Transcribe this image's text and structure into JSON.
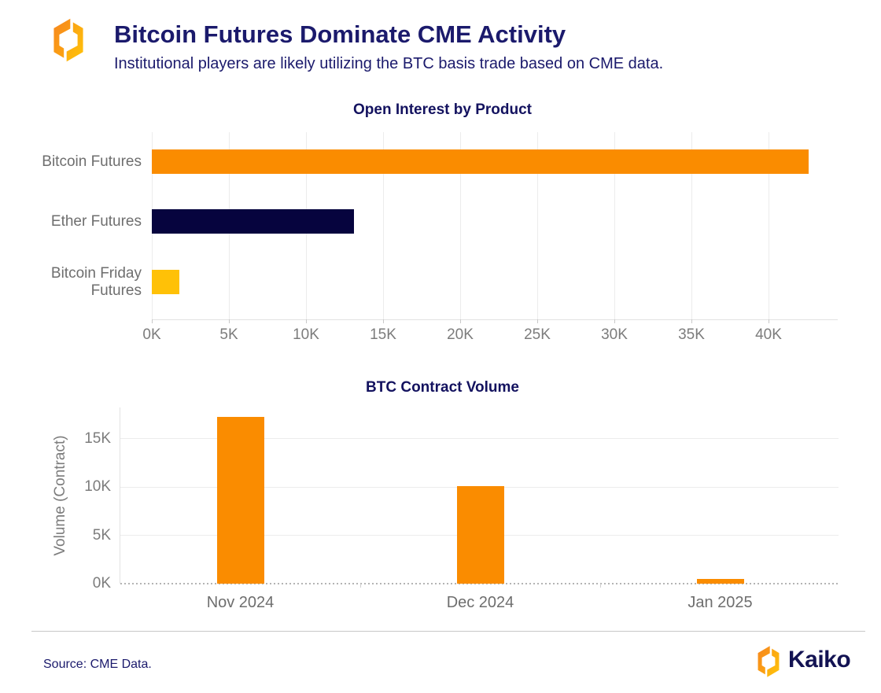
{
  "header": {
    "title": "Bitcoin Futures Dominate CME Activity",
    "subtitle": "Institutional players are likely utilizing the BTC basis trade based on CME data."
  },
  "chart_data": [
    {
      "type": "bar",
      "orientation": "horizontal",
      "title": "Open Interest by Product",
      "categories": [
        "Bitcoin Futures",
        "Ether Futures",
        "Bitcoin Friday Futures"
      ],
      "values": [
        42600,
        13100,
        1800
      ],
      "unit": "contracts (open interest)",
      "bar_colors": [
        "#fa8c00",
        "#06043e",
        "#ffc107"
      ],
      "xtick_labels": [
        "0K",
        "5K",
        "10K",
        "15K",
        "20K",
        "25K",
        "30K",
        "35K",
        "40K"
      ],
      "xtick_values": [
        0,
        5000,
        10000,
        15000,
        20000,
        25000,
        30000,
        35000,
        40000
      ],
      "xlim": [
        0,
        44500
      ],
      "grid": true,
      "legend": false
    },
    {
      "type": "bar",
      "orientation": "vertical",
      "title": "BTC Contract Volume",
      "ylabel": "Volume (Contract)",
      "categories": [
        "Nov 2024",
        "Dec 2024",
        "Jan 2025"
      ],
      "values": [
        17300,
        10100,
        450
      ],
      "unit": "contracts",
      "bar_color": "#fa8c00",
      "ytick_labels": [
        "0K",
        "5K",
        "10K",
        "15K"
      ],
      "ytick_values": [
        0,
        5000,
        10000,
        15000
      ],
      "ylim": [
        0,
        18250
      ],
      "zero_line": "dashed",
      "grid": true,
      "legend": false
    }
  ],
  "footer": {
    "source": "Source: CME Data.",
    "brand": "Kaiko"
  },
  "colors": {
    "accent_orange": "#fa8c00",
    "navy_bar": "#06043e",
    "amber": "#ffc107",
    "heading_text": "#1b1a6c",
    "chart_title_text": "#13125f",
    "axis_text": "#7c7c7c",
    "category_text": "#6e6e6e",
    "gridline": "#ececec"
  }
}
